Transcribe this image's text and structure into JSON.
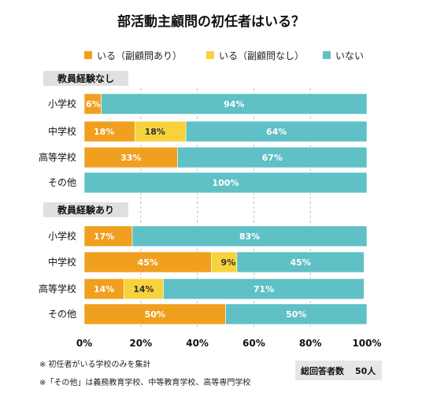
{
  "chart_data": {
    "type": "bar",
    "orientation": "horizontal",
    "stacked": true,
    "title": "部活動主顧問の初任者はいる？",
    "legend_position": "top",
    "series": [
      {
        "name": "いる（副顧問あり）",
        "color": "#f0a01e"
      },
      {
        "name": "いる（副顧問なし）",
        "color": "#f7d23c"
      },
      {
        "name": "いない",
        "color": "#5fc0c6"
      }
    ],
    "groups": [
      {
        "label": "教員経験なし",
        "rows": [
          {
            "category": "小学校",
            "values": [
              6,
              0,
              94
            ],
            "labels": [
              "6%",
              "",
              "94%"
            ]
          },
          {
            "category": "中学校",
            "values": [
              18,
              18,
              64
            ],
            "labels": [
              "18%",
              "18%",
              "64%"
            ]
          },
          {
            "category": "高等学校",
            "values": [
              33,
              0,
              67
            ],
            "labels": [
              "33%",
              "",
              "67%"
            ]
          },
          {
            "category": "その他",
            "values": [
              0,
              0,
              100
            ],
            "labels": [
              "",
              "",
              "100%"
            ]
          }
        ]
      },
      {
        "label": "教員経験あり",
        "rows": [
          {
            "category": "小学校",
            "values": [
              17,
              0,
              83
            ],
            "labels": [
              "17%",
              "",
              "83%"
            ]
          },
          {
            "category": "中学校",
            "values": [
              45,
              9,
              45
            ],
            "labels": [
              "45%",
              "9%",
              "45%"
            ]
          },
          {
            "category": "高等学校",
            "values": [
              14,
              14,
              71
            ],
            "labels": [
              "14%",
              "14%",
              "71%"
            ]
          },
          {
            "category": "その他",
            "values": [
              50,
              0,
              50
            ],
            "labels": [
              "50%",
              "",
              "50%"
            ]
          }
        ]
      }
    ],
    "xlim": [
      0,
      100
    ],
    "xticks": [
      "0%",
      "20%",
      "40%",
      "60%",
      "80%",
      "100%"
    ],
    "notes": [
      "※ 初任者がいる学校のみを集計",
      "※「その他」は義務教育学校、中等教育学校、高等専門学校"
    ],
    "total_label": "総回答者数",
    "total_value": "50人"
  }
}
